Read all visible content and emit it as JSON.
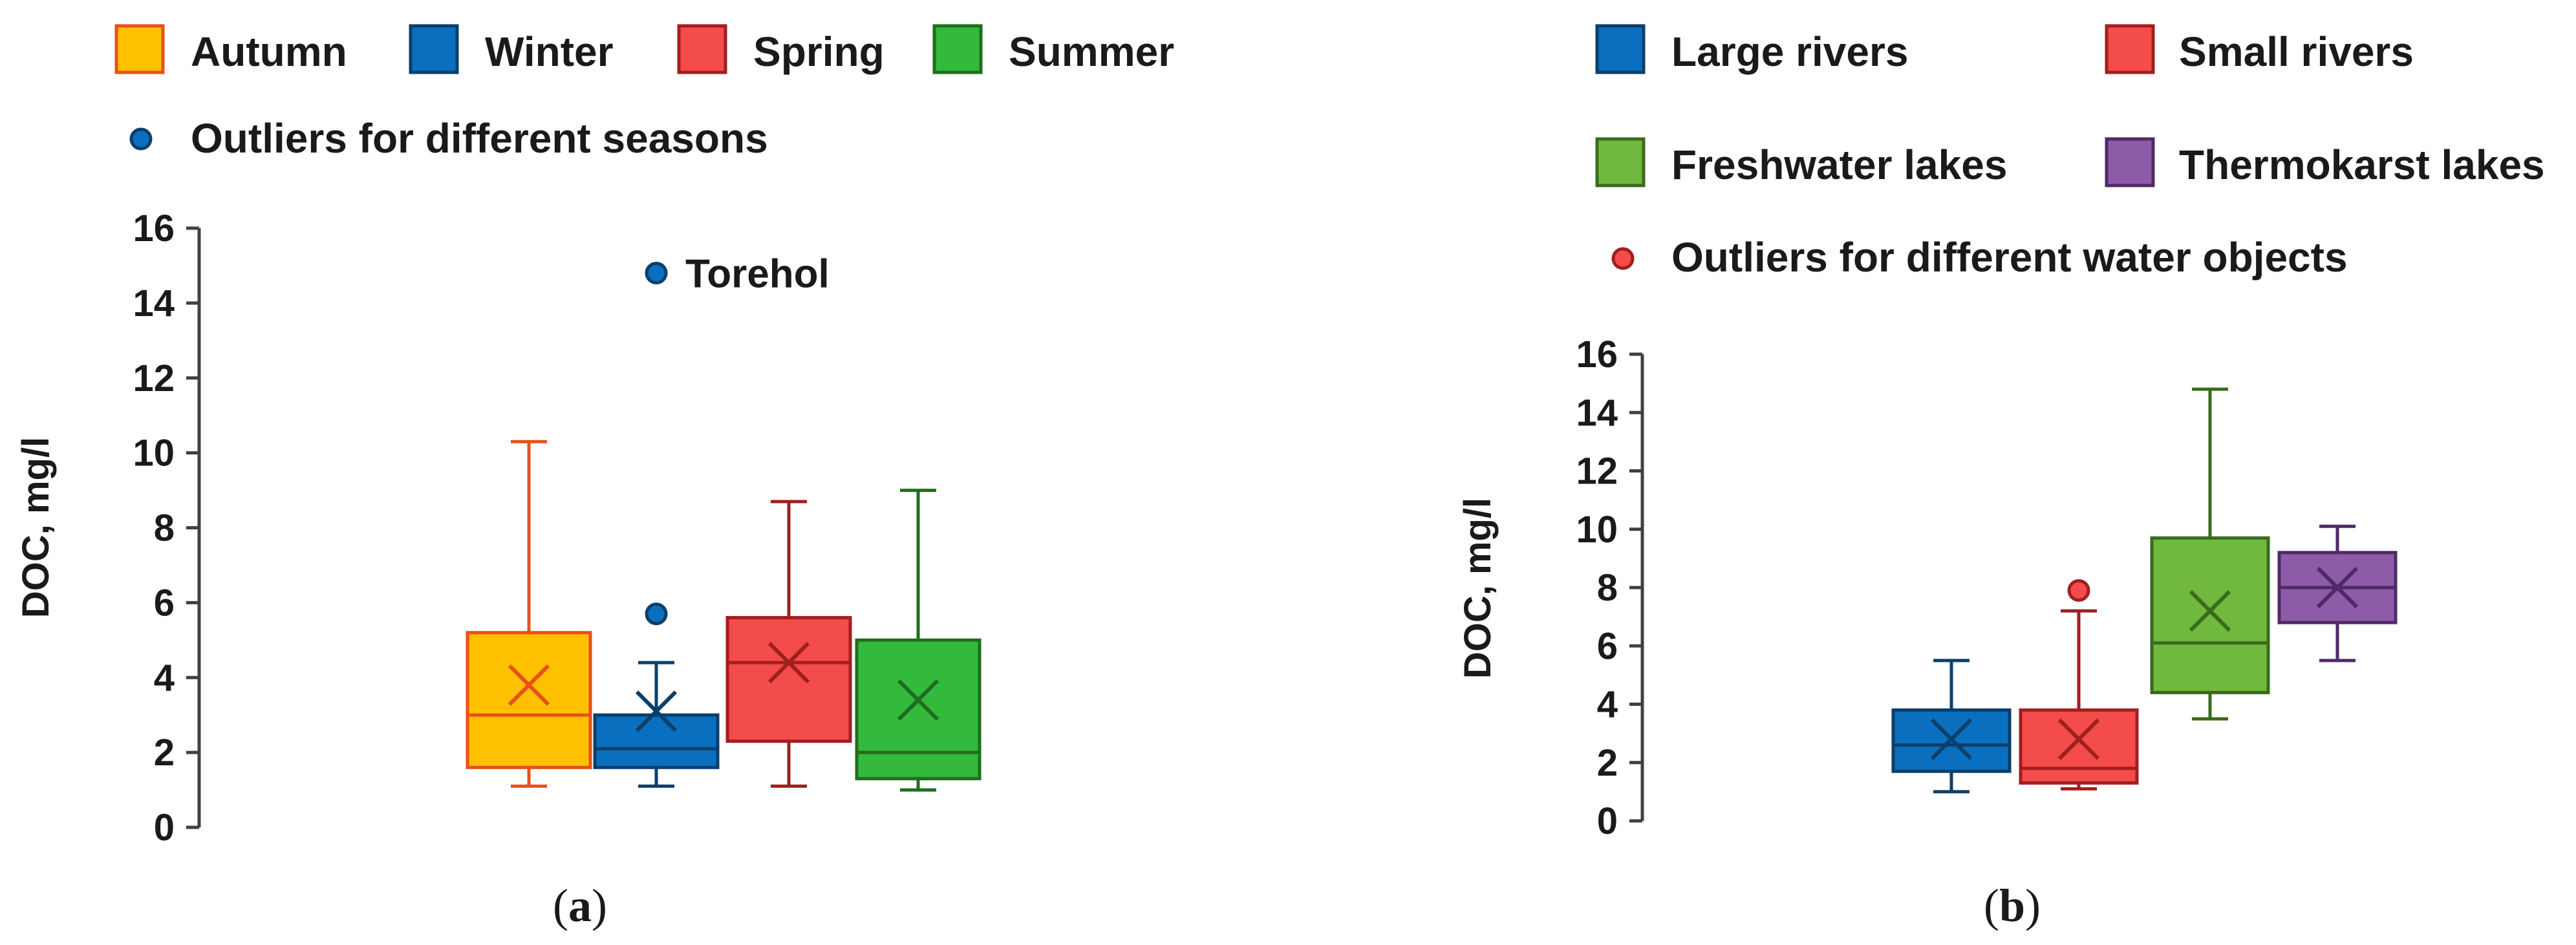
{
  "chart_data": [
    {
      "panel_label": "a",
      "type": "box",
      "ylabel": "DOC, mg/l",
      "ylim": [
        0,
        16
      ],
      "yticks": [
        0,
        2,
        4,
        6,
        8,
        10,
        12,
        14,
        16
      ],
      "legend": {
        "placement": "top",
        "entries": [
          {
            "label": "Autumn",
            "fill": "#FFC000",
            "stroke": "#E8501A"
          },
          {
            "label": "Winter",
            "fill": "#0A6FBF",
            "stroke": "#0B3F6B"
          },
          {
            "label": "Spring",
            "fill": "#F44B4B",
            "stroke": "#A01F1F"
          },
          {
            "label": "Summer",
            "fill": "#33B93B",
            "stroke": "#1F6E1F"
          }
        ],
        "outlier_label": "Outliers for different seasons",
        "outlier_fill": "#0A6FBF",
        "outlier_stroke": "#0B3F6B"
      },
      "series": [
        {
          "name": "Autumn",
          "min": 1.1,
          "q1": 1.6,
          "median": 3.0,
          "q3": 5.2,
          "max": 10.3,
          "mean": 3.8,
          "outliers": [],
          "fill": "#FFC000",
          "stroke": "#E8501A"
        },
        {
          "name": "Winter",
          "min": 1.1,
          "q1": 1.6,
          "median": 2.1,
          "q3": 3.0,
          "max": 4.4,
          "mean": 3.1,
          "outliers": [
            5.7,
            14.8
          ],
          "fill": "#0A6FBF",
          "stroke": "#0B3F6B"
        },
        {
          "name": "Spring",
          "min": 1.1,
          "q1": 2.3,
          "median": 4.4,
          "q3": 5.6,
          "max": 8.7,
          "mean": 4.4,
          "outliers": [],
          "fill": "#F44B4B",
          "stroke": "#A01F1F"
        },
        {
          "name": "Summer",
          "min": 1.0,
          "q1": 1.3,
          "median": 2.0,
          "q3": 5.0,
          "max": 9.0,
          "mean": 3.4,
          "outliers": [],
          "fill": "#33B93B",
          "stroke": "#1F6E1F"
        }
      ],
      "annotations": [
        {
          "text": "Torehol",
          "series": "Winter",
          "value": 14.8
        }
      ]
    },
    {
      "panel_label": "b",
      "type": "box",
      "ylabel": "DOC, mg/l",
      "ylim": [
        0,
        16
      ],
      "yticks": [
        0,
        2,
        4,
        6,
        8,
        10,
        12,
        14,
        16
      ],
      "legend": {
        "placement": "top",
        "entries": [
          {
            "label": "Large rivers",
            "fill": "#0A6FBF",
            "stroke": "#0B3F6B"
          },
          {
            "label": "Small rivers",
            "fill": "#F44B4B",
            "stroke": "#A01F1F"
          },
          {
            "label": "Freshwater lakes",
            "fill": "#70B83E",
            "stroke": "#3A6B1C"
          },
          {
            "label": "Thermokarst lakes",
            "fill": "#8D5BA8",
            "stroke": "#4F2A66"
          }
        ],
        "outlier_label": "Outliers for different water objects",
        "outlier_fill": "#F44B4B",
        "outlier_stroke": "#A01F1F"
      },
      "series": [
        {
          "name": "Large rivers",
          "min": 1.0,
          "q1": 1.7,
          "median": 2.6,
          "q3": 3.8,
          "max": 5.5,
          "mean": 2.8,
          "outliers": [],
          "fill": "#0A6FBF",
          "stroke": "#0B3F6B"
        },
        {
          "name": "Small rivers",
          "min": 1.1,
          "q1": 1.3,
          "median": 1.8,
          "q3": 3.8,
          "max": 7.2,
          "mean": 2.8,
          "outliers": [
            7.9
          ],
          "fill": "#F44B4B",
          "stroke": "#A01F1F"
        },
        {
          "name": "Freshwater lakes",
          "min": 3.5,
          "q1": 4.4,
          "median": 6.1,
          "q3": 9.7,
          "max": 14.8,
          "mean": 7.2,
          "outliers": [],
          "fill": "#70B83E",
          "stroke": "#3A6B1C"
        },
        {
          "name": "Thermokarst lakes",
          "min": 5.5,
          "q1": 6.8,
          "median": 8.0,
          "q3": 9.2,
          "max": 10.1,
          "mean": 8.0,
          "outliers": [],
          "fill": "#8D5BA8",
          "stroke": "#4F2A66"
        }
      ],
      "annotations": []
    }
  ]
}
